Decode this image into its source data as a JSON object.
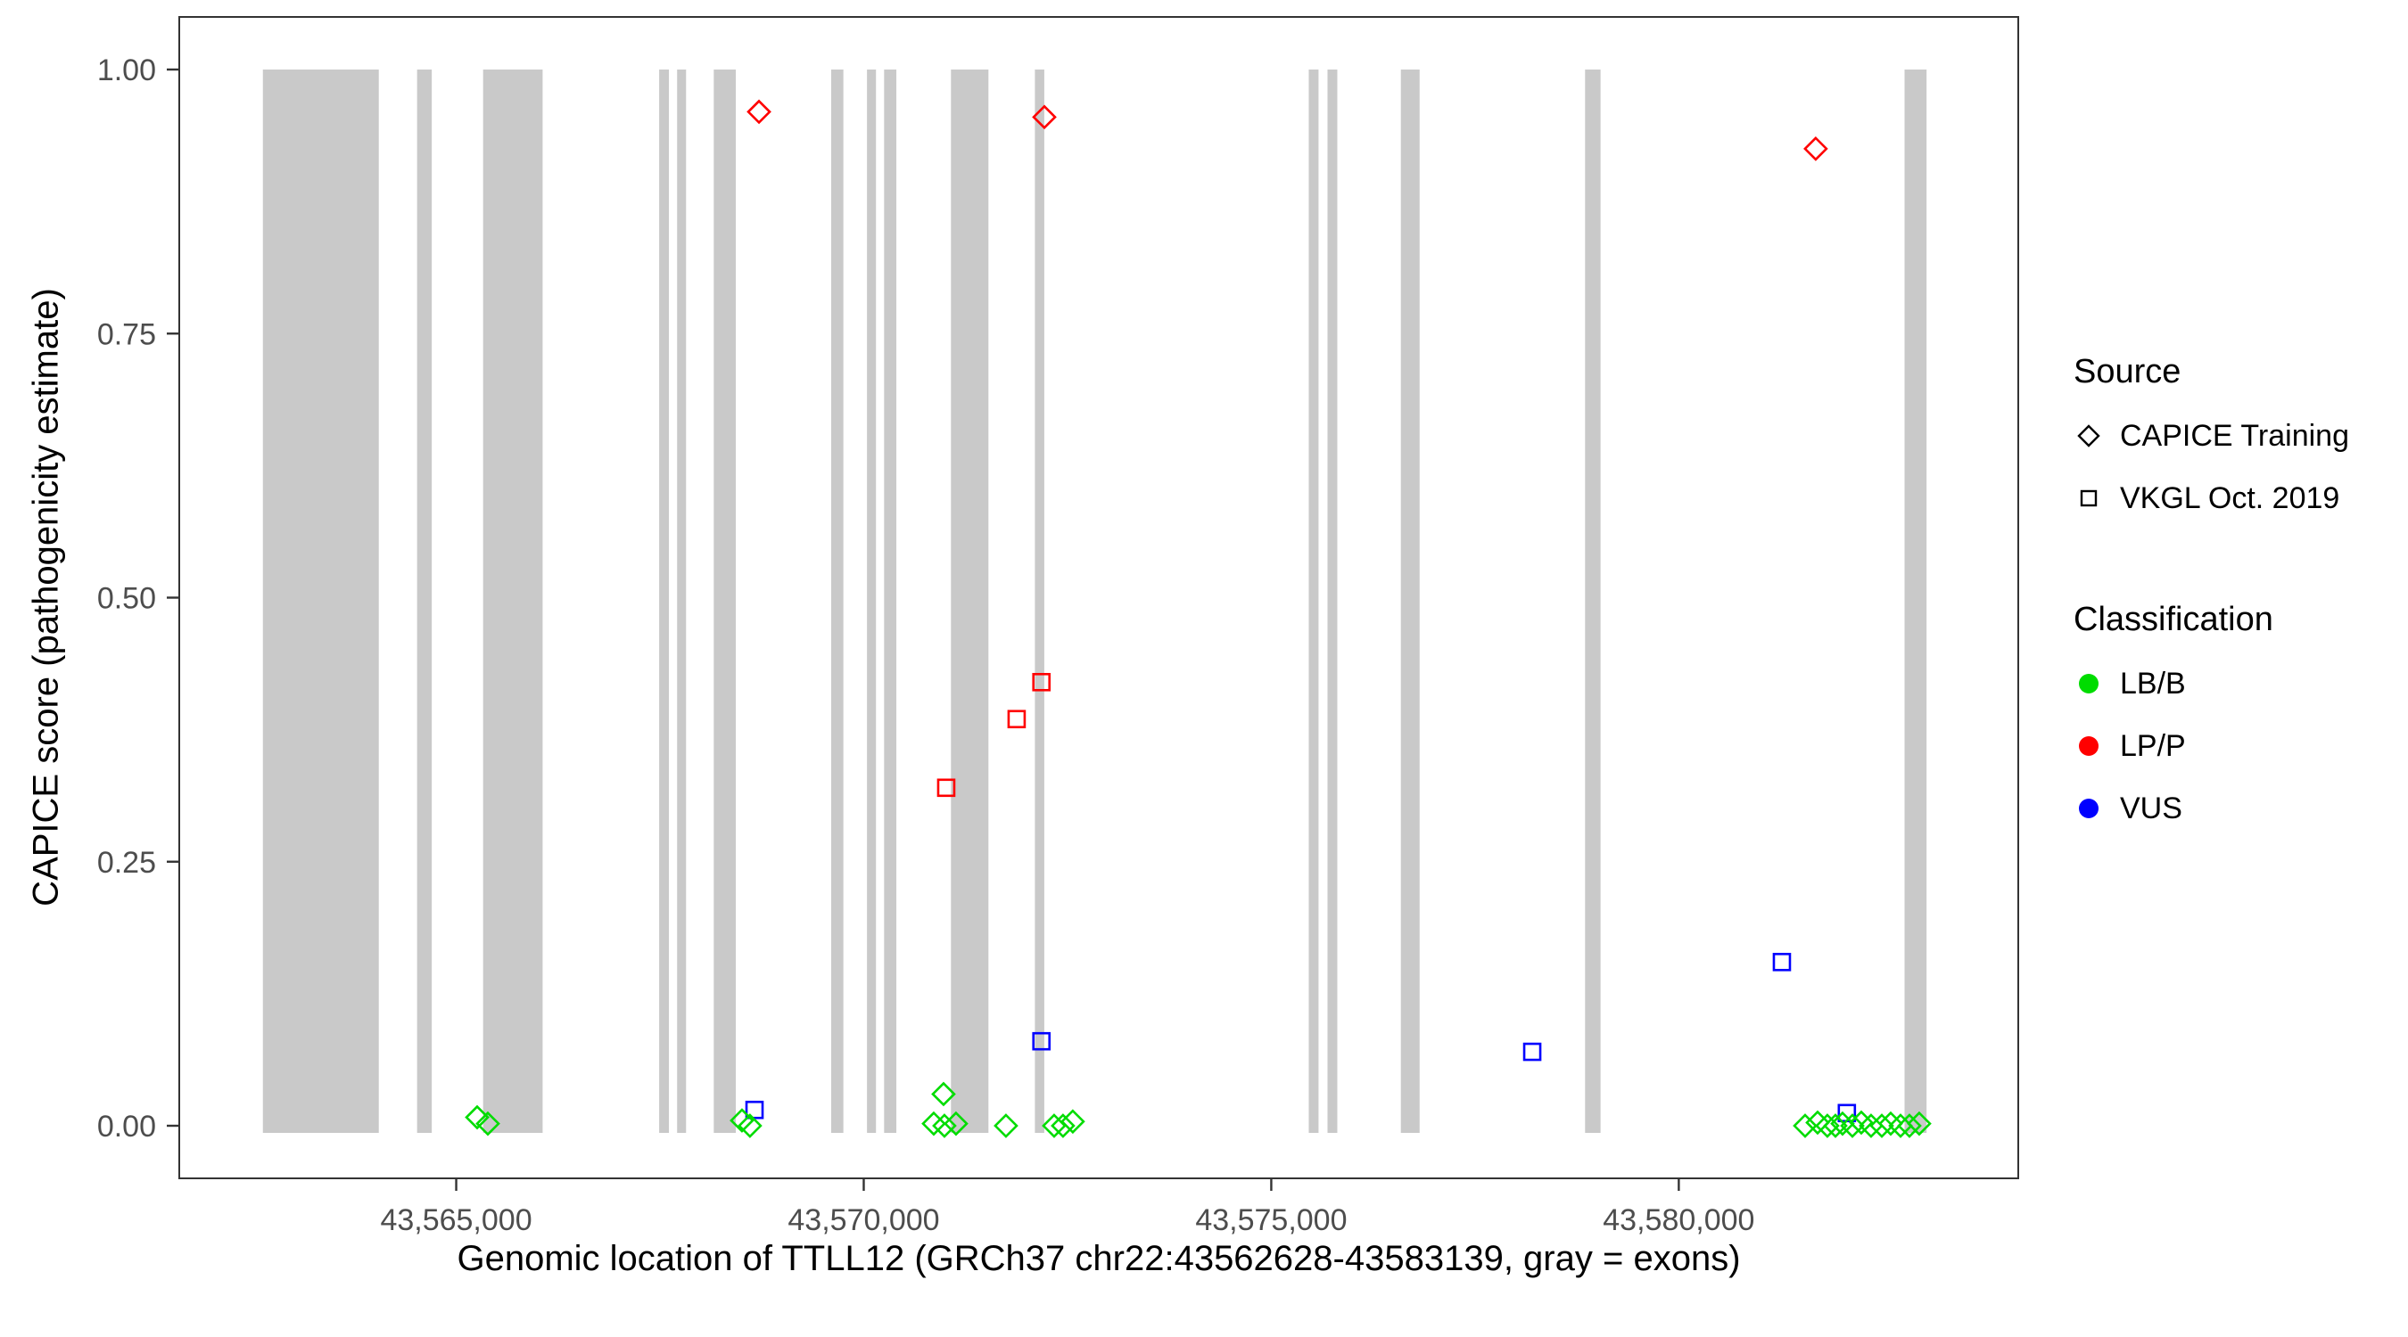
{
  "chart_data": {
    "type": "scatter",
    "title": "",
    "xlabel": "Genomic location of TTLL12 (GRCh37 chr22:43562628-43583139, gray = exons)",
    "ylabel": "CAPICE score (pathogenicity estimate)",
    "xlim": [
      43561602,
      43584165
    ],
    "ylim": [
      0,
      1
    ],
    "grid": "off",
    "x_ticks": [
      {
        "label": "43,565,000",
        "value": 43565000
      },
      {
        "label": "43,570,000",
        "value": 43570000
      },
      {
        "label": "43,575,000",
        "value": 43575000
      },
      {
        "label": "43,580,000",
        "value": 43580000
      }
    ],
    "y_ticks": [
      {
        "label": "0.00",
        "value": 0.0
      },
      {
        "label": "0.25",
        "value": 0.25
      },
      {
        "label": "0.50",
        "value": 0.5
      },
      {
        "label": "0.75",
        "value": 0.75
      },
      {
        "label": "1.00",
        "value": 1.0
      }
    ],
    "exon_color": "#C9C9C9",
    "exons": [
      [
        43562628,
        43564050
      ],
      [
        43564520,
        43564700
      ],
      [
        43565330,
        43566060
      ],
      [
        43567490,
        43567610
      ],
      [
        43567710,
        43567820
      ],
      [
        43568160,
        43568430
      ],
      [
        43569600,
        43569750
      ],
      [
        43570040,
        43570150
      ],
      [
        43570250,
        43570400
      ],
      [
        43571070,
        43571530
      ],
      [
        43572100,
        43572215
      ],
      [
        43575460,
        43575580
      ],
      [
        43575690,
        43575810
      ],
      [
        43576590,
        43576820
      ],
      [
        43578850,
        43579040
      ],
      [
        43582770,
        43583040
      ]
    ],
    "colors": {
      "LB/B": "#00DC00",
      "LP/P": "#FF0000",
      "VUS": "#0000FF"
    },
    "shapes": {
      "CAPICE Training": "diamond",
      "VKGL Oct. 2019": "square"
    },
    "points": [
      {
        "pos": 43568715,
        "score": 0.96,
        "source": "CAPICE Training",
        "classification": "LP/P"
      },
      {
        "pos": 43572216,
        "score": 0.955,
        "source": "CAPICE Training",
        "classification": "LP/P"
      },
      {
        "pos": 43581680,
        "score": 0.925,
        "source": "CAPICE Training",
        "classification": "LP/P"
      },
      {
        "pos": 43571012,
        "score": 0.32,
        "source": "VKGL Oct. 2019",
        "classification": "LP/P"
      },
      {
        "pos": 43571876,
        "score": 0.385,
        "source": "VKGL Oct. 2019",
        "classification": "LP/P"
      },
      {
        "pos": 43572180,
        "score": 0.42,
        "source": "VKGL Oct. 2019",
        "classification": "LP/P"
      },
      {
        "pos": 43568660,
        "score": 0.015,
        "source": "VKGL Oct. 2019",
        "classification": "VUS"
      },
      {
        "pos": 43572180,
        "score": 0.08,
        "source": "VKGL Oct. 2019",
        "classification": "VUS"
      },
      {
        "pos": 43578202,
        "score": 0.07,
        "source": "VKGL Oct. 2019",
        "classification": "VUS"
      },
      {
        "pos": 43581265,
        "score": 0.155,
        "source": "VKGL Oct. 2019",
        "classification": "VUS"
      },
      {
        "pos": 43582062,
        "score": 0.012,
        "source": "VKGL Oct. 2019",
        "classification": "VUS"
      },
      {
        "pos": 43565257,
        "score": 0.008,
        "source": "CAPICE Training",
        "classification": "LB/B"
      },
      {
        "pos": 43565388,
        "score": 0.002,
        "source": "CAPICE Training",
        "classification": "LB/B"
      },
      {
        "pos": 43568506,
        "score": 0.005,
        "source": "CAPICE Training",
        "classification": "LB/B"
      },
      {
        "pos": 43568604,
        "score": 0.0,
        "source": "CAPICE Training",
        "classification": "LB/B"
      },
      {
        "pos": 43570979,
        "score": 0.03,
        "source": "CAPICE Training",
        "classification": "LB/B"
      },
      {
        "pos": 43570859,
        "score": 0.002,
        "source": "CAPICE Training",
        "classification": "LB/B"
      },
      {
        "pos": 43570990,
        "score": 0.0,
        "source": "CAPICE Training",
        "classification": "LB/B"
      },
      {
        "pos": 43571132,
        "score": 0.002,
        "source": "CAPICE Training",
        "classification": "LB/B"
      },
      {
        "pos": 43571745,
        "score": 0.0,
        "source": "CAPICE Training",
        "classification": "LB/B"
      },
      {
        "pos": 43572336,
        "score": 0.0,
        "source": "CAPICE Training",
        "classification": "LB/B"
      },
      {
        "pos": 43572445,
        "score": 0.0,
        "source": "CAPICE Training",
        "classification": "LB/B"
      },
      {
        "pos": 43572565,
        "score": 0.004,
        "source": "CAPICE Training",
        "classification": "LB/B"
      },
      {
        "pos": 43581550,
        "score": 0.0,
        "source": "CAPICE Training",
        "classification": "LB/B"
      },
      {
        "pos": 43581703,
        "score": 0.003,
        "source": "CAPICE Training",
        "classification": "LB/B"
      },
      {
        "pos": 43581823,
        "score": 0.0,
        "source": "CAPICE Training",
        "classification": "LB/B"
      },
      {
        "pos": 43581922,
        "score": 0.0,
        "source": "CAPICE Training",
        "classification": "LB/B"
      },
      {
        "pos": 43582009,
        "score": 0.002,
        "source": "CAPICE Training",
        "classification": "LB/B"
      },
      {
        "pos": 43582130,
        "score": 0.0,
        "source": "CAPICE Training",
        "classification": "LB/B"
      },
      {
        "pos": 43582239,
        "score": 0.003,
        "source": "CAPICE Training",
        "classification": "LB/B"
      },
      {
        "pos": 43582359,
        "score": 0.0,
        "source": "CAPICE Training",
        "classification": "LB/B"
      },
      {
        "pos": 43582491,
        "score": 0.0,
        "source": "CAPICE Training",
        "classification": "LB/B"
      },
      {
        "pos": 43582600,
        "score": 0.002,
        "source": "CAPICE Training",
        "classification": "LB/B"
      },
      {
        "pos": 43582721,
        "score": 0.0,
        "source": "CAPICE Training",
        "classification": "LB/B"
      },
      {
        "pos": 43582830,
        "score": 0.0,
        "source": "CAPICE Training",
        "classification": "LB/B"
      },
      {
        "pos": 43582950,
        "score": 0.002,
        "source": "CAPICE Training",
        "classification": "LB/B"
      }
    ],
    "legend": {
      "source": {
        "title": "Source",
        "items": [
          {
            "label": "CAPICE Training",
            "shape": "diamond"
          },
          {
            "label": "VKGL Oct. 2019",
            "shape": "square"
          }
        ]
      },
      "classification": {
        "title": "Classification",
        "items": [
          {
            "label": "LB/B",
            "color": "#00DC00"
          },
          {
            "label": "LP/P",
            "color": "#FF0000"
          },
          {
            "label": "VUS",
            "color": "#0000FF"
          }
        ]
      }
    }
  }
}
